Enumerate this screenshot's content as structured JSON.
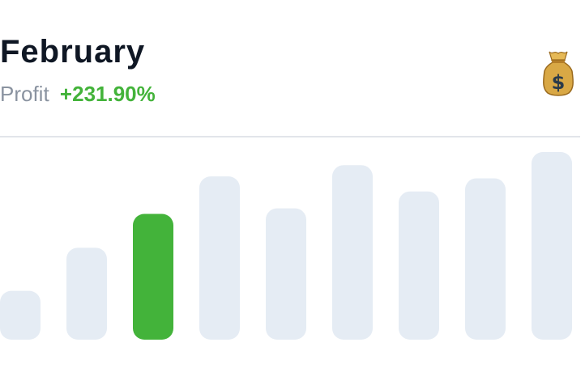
{
  "header": {
    "title": "February",
    "profit_label": "Profit",
    "profit_value": "+231.90%",
    "icon": "money-bag-icon"
  },
  "colors": {
    "accent": "#43b33a",
    "bar_default": "#e5ecf4",
    "title": "#0f1724",
    "muted": "#8a93a0",
    "divider": "#e2e5ea"
  },
  "chart_data": {
    "type": "bar",
    "values": [
      0.26,
      0.49,
      0.67,
      0.87,
      0.7,
      0.93,
      0.79,
      0.86,
      1.0
    ],
    "highlight_index": 2,
    "axes": "none",
    "grid": false,
    "legend": "none"
  }
}
